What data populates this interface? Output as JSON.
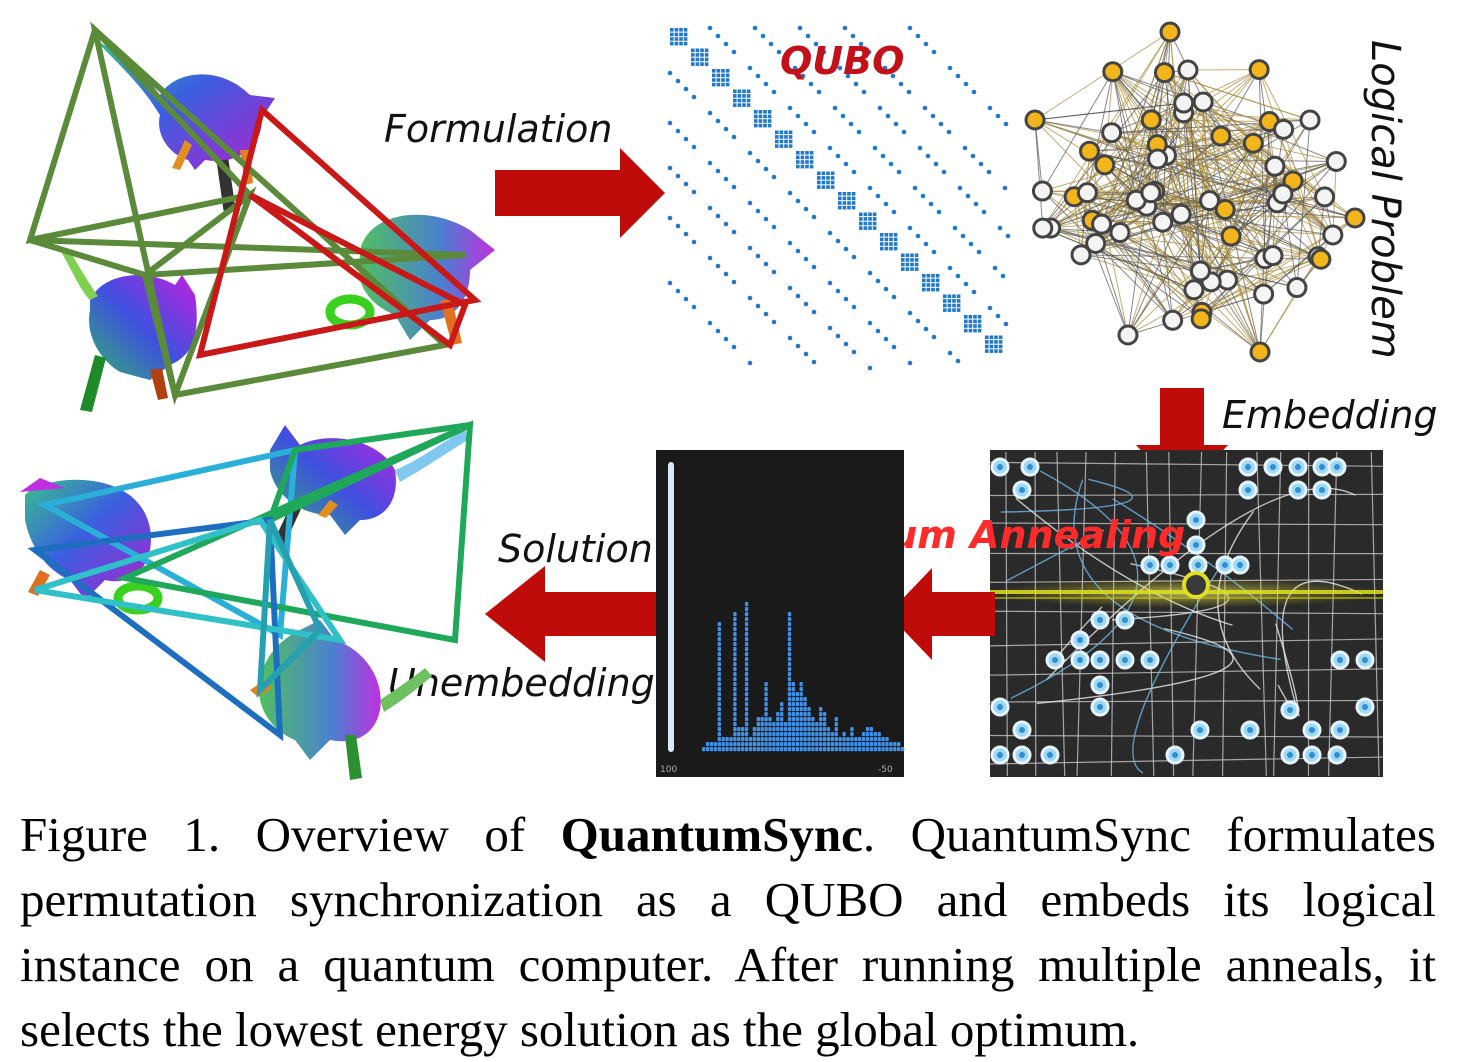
{
  "figure": {
    "labels": {
      "formulation": "Formulation",
      "qubo": "QUBO",
      "logical_problem": "Logical Problem",
      "embedding": "Embedding",
      "quantum_annealing": "Quantum Annealing",
      "solution": "Solution",
      "unembedding": "Unembedding"
    },
    "histogram_axis": {
      "left": "100",
      "right": "-50"
    },
    "colors": {
      "arrow": "#c00b0b",
      "qubo_dots": "#1f78c8",
      "graph_gold": "#f2b51c",
      "input_cycle": "#5a8a3a",
      "input_cycle_alt": "#c81818",
      "solution_cycle": "#2ab0d8",
      "solution_cycle_alt": "#1fa85a",
      "annealer_bg": "#2a2a2a",
      "histogram_bar": "#3f8fe6"
    }
  },
  "caption": {
    "prefix": "Figure 1. Overview of ",
    "bold": "QuantumSync",
    "rest": ". QuantumSync formulates permutation synchronization as a QUBO and embeds its logical instance on a quantum computer. After running multiple anneals, it selects the lowest energy solution as the global optimum."
  }
}
